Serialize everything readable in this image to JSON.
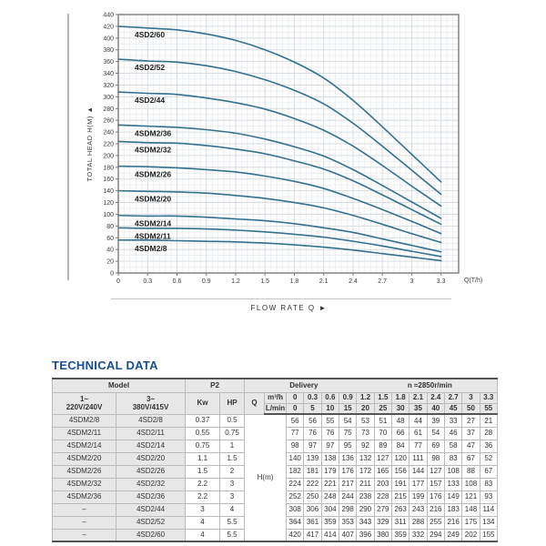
{
  "chart": {
    "y_axis_title": "TOTAL HEAD H(M)",
    "y_axis_arrow": "▲",
    "x_axis_unit": "Q(T/h)",
    "x_axis_title": "FLOW RATE Q",
    "x_axis_arrow": "►",
    "colors": {
      "curve": "#34708f",
      "border": "#7a7a7a",
      "grid_major": "#d2d9de",
      "grid_minor": "#e6eaed",
      "plot_bg": "#fdfdfd",
      "tick_text": "#3a3a3a"
    }
  },
  "chart_data": {
    "type": "line",
    "title": "",
    "xlabel": "FLOW RATE Q",
    "ylabel": "TOTAL HEAD H(M)",
    "x_unit": "Q(T/h)",
    "x": [
      0,
      0.3,
      0.6,
      0.9,
      1.2,
      1.5,
      1.8,
      2.1,
      2.4,
      2.7,
      3,
      3.3
    ],
    "x_ticks": [
      "0",
      "0.3",
      "0.6",
      "0.9",
      "1.2",
      "1.5",
      "1.8",
      "2.1",
      "2.4",
      "2.7",
      "3",
      "3.3"
    ],
    "xlim": [
      0,
      3.48
    ],
    "ylim": [
      0,
      440
    ],
    "y_tick_step": 20,
    "x_minor": 0.06,
    "y_minor": 10,
    "grid": true,
    "legend_position": "inline-left",
    "series": [
      {
        "name": "4SD2/60",
        "values": [
          420,
          417,
          414,
          407,
          396,
          380,
          359,
          332,
          294,
          249,
          202,
          155
        ]
      },
      {
        "name": "4SD2/52",
        "values": [
          364,
          361,
          359,
          353,
          343,
          329,
          311,
          288,
          255,
          216,
          175,
          134
        ]
      },
      {
        "name": "4SD2/44",
        "values": [
          308,
          306,
          304,
          298,
          290,
          279,
          263,
          243,
          216,
          183,
          148,
          114
        ]
      },
      {
        "name": "4SDM2/36",
        "values": [
          252,
          250,
          248,
          244,
          238,
          228,
          215,
          199,
          176,
          149,
          121,
          93
        ]
      },
      {
        "name": "4SDM2/32",
        "values": [
          224,
          222,
          221,
          217,
          211,
          203,
          191,
          177,
          157,
          133,
          108,
          83
        ]
      },
      {
        "name": "4SDM2/26",
        "values": [
          182,
          181,
          179,
          176,
          172,
          165,
          156,
          144,
          127,
          108,
          88,
          67
        ]
      },
      {
        "name": "4SDM2/20",
        "values": [
          140,
          139,
          138,
          136,
          132,
          127,
          120,
          111,
          98,
          83,
          67,
          52
        ]
      },
      {
        "name": "4SDM2/14",
        "values": [
          98,
          97,
          97,
          95,
          92,
          89,
          84,
          77,
          69,
          58,
          47,
          36
        ]
      },
      {
        "name": "4SDM2/11",
        "values": [
          77,
          76,
          76,
          75,
          73,
          70,
          66,
          61,
          54,
          46,
          37,
          28
        ]
      },
      {
        "name": "4SDM2/8",
        "values": [
          56,
          56,
          55,
          54,
          53,
          51,
          48,
          44,
          39,
          33,
          27,
          21
        ]
      }
    ]
  },
  "table": {
    "title": "TECHNICAL DATA",
    "header": {
      "model": "Model",
      "phase1_line1": "1~",
      "phase1_line2": "220V/240V",
      "phase3_line1": "3~",
      "phase3_line2": "380V/415V",
      "p2": "P2",
      "kw": "Kw",
      "hp": "HP",
      "q": "Q",
      "delivery": "Delivery",
      "speed": "n ≈2850r/min",
      "unit_m3h": "m³/h",
      "unit_lmin": "L/min",
      "body_unit": "H(m)"
    },
    "m3h_values": [
      "0",
      "0.3",
      "0.6",
      "0.9",
      "1.2",
      "1.5",
      "1.8",
      "2.1",
      "2.4",
      "2.7",
      "3",
      "3.3"
    ],
    "lmin_values": [
      "0",
      "5",
      "10",
      "15",
      "20",
      "25",
      "30",
      "35",
      "40",
      "45",
      "50",
      "55"
    ],
    "rows": [
      {
        "model1": "4SDM2/8",
        "model3": "4SD2/8",
        "kw": "0.37",
        "hp": "0.5",
        "h": [
          56,
          56,
          55,
          54,
          53,
          51,
          48,
          44,
          39,
          33,
          27,
          21
        ]
      },
      {
        "model1": "4SDM2/11",
        "model3": "4SD2/11",
        "kw": "0.55",
        "hp": "0.75",
        "h": [
          77,
          76,
          76,
          75,
          73,
          70,
          66,
          61,
          54,
          46,
          37,
          28
        ]
      },
      {
        "model1": "4SDM2/14",
        "model3": "4SD2/14",
        "kw": "0.75",
        "hp": "1",
        "h": [
          98,
          97,
          97,
          95,
          92,
          89,
          84,
          77,
          69,
          58,
          47,
          36
        ]
      },
      {
        "model1": "4SDM2/20",
        "model3": "4SD2/20",
        "kw": "1.1",
        "hp": "1.5",
        "h": [
          140,
          139,
          138,
          136,
          132,
          127,
          120,
          111,
          98,
          83,
          67,
          52
        ]
      },
      {
        "model1": "4SDM2/26",
        "model3": "4SD2/26",
        "kw": "1.5",
        "hp": "2",
        "h": [
          182,
          181,
          179,
          176,
          172,
          165,
          156,
          144,
          127,
          108,
          88,
          67
        ]
      },
      {
        "model1": "4SDM2/32",
        "model3": "4SD2/32",
        "kw": "2.2",
        "hp": "3",
        "h": [
          224,
          222,
          221,
          217,
          211,
          203,
          191,
          177,
          157,
          133,
          108,
          83
        ]
      },
      {
        "model1": "4SDM2/36",
        "model3": "4SD2/36",
        "kw": "2.2",
        "hp": "3",
        "h": [
          252,
          250,
          248,
          244,
          238,
          228,
          215,
          199,
          176,
          149,
          121,
          93
        ]
      },
      {
        "model1": "–",
        "model3": "4SD2/44",
        "kw": "3",
        "hp": "4",
        "h": [
          308,
          306,
          304,
          298,
          290,
          279,
          263,
          243,
          216,
          183,
          148,
          114
        ]
      },
      {
        "model1": "–",
        "model3": "4SD2/52",
        "kw": "4",
        "hp": "5.5",
        "h": [
          364,
          361,
          359,
          353,
          343,
          329,
          311,
          288,
          255,
          216,
          175,
          134
        ]
      },
      {
        "model1": "–",
        "model3": "4SD2/60",
        "kw": "4",
        "hp": "5.5",
        "h": [
          420,
          417,
          414,
          407,
          396,
          380,
          359,
          332,
          294,
          249,
          202,
          155
        ]
      }
    ]
  }
}
